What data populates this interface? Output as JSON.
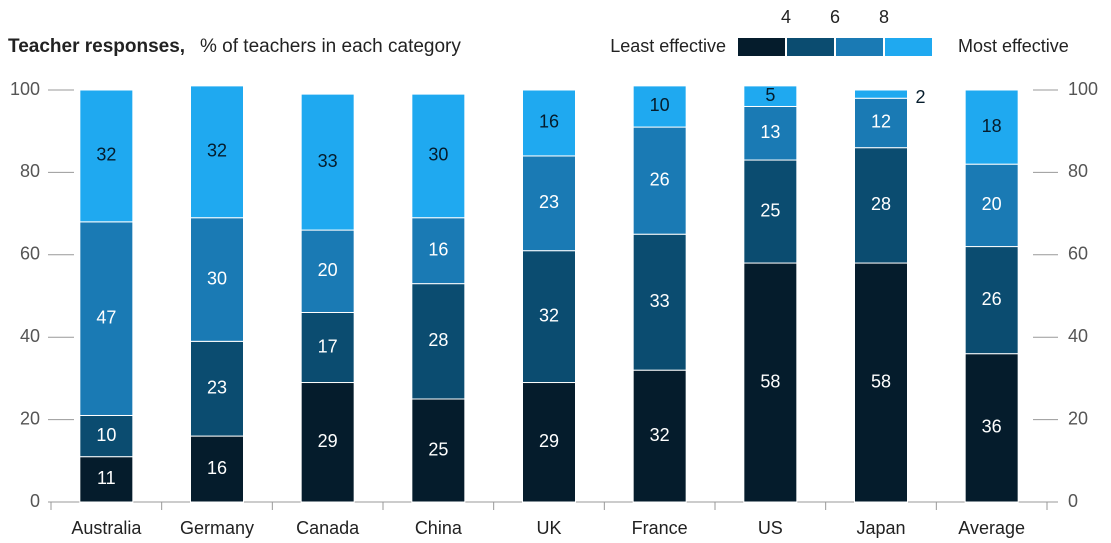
{
  "chart_data": {
    "type": "stacked_bar",
    "title": "Teacher responses,",
    "subtitle": "% of teachers in each category",
    "legend": {
      "left_label": "Least effective",
      "right_label": "Most effective",
      "ticks": [
        4,
        6,
        8
      ]
    },
    "categories": [
      "Australia",
      "Germany",
      "Canada",
      "China",
      "UK",
      "France",
      "US",
      "Japan",
      "Average"
    ],
    "series": [
      {
        "color": "#051c2c",
        "values": [
          11,
          16,
          29,
          25,
          29,
          32,
          58,
          58,
          36
        ]
      },
      {
        "color": "#0b4c70",
        "values": [
          10,
          23,
          17,
          28,
          32,
          33,
          25,
          28,
          26
        ]
      },
      {
        "color": "#1a7ab4",
        "values": [
          47,
          30,
          20,
          16,
          23,
          26,
          13,
          12,
          20
        ]
      },
      {
        "color": "#1fa9f0",
        "values": [
          32,
          32,
          33,
          30,
          16,
          10,
          5,
          2,
          18
        ]
      }
    ],
    "ylim": [
      0,
      100
    ],
    "yticks": [
      0,
      20,
      40,
      60,
      80,
      100
    ]
  }
}
